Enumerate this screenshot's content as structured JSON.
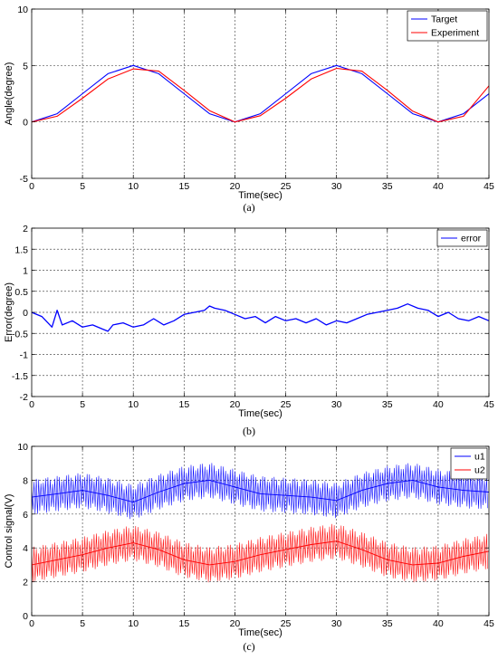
{
  "charts": [
    {
      "key": "a",
      "caption": "(a)",
      "title": "",
      "xlabel": "Time(sec)",
      "ylabel": "Angle(degree)",
      "xlim": [
        0,
        45
      ],
      "ylim": [
        -5,
        10
      ],
      "xticks": [
        0,
        5,
        10,
        15,
        20,
        25,
        30,
        35,
        40,
        45
      ],
      "yticks": [
        -5,
        0,
        5,
        10
      ],
      "grid": true,
      "legend_position": "top-right",
      "legend_labels": [
        "Target",
        "Experiment"
      ]
    },
    {
      "key": "b",
      "caption": "(b)",
      "title": "",
      "xlabel": "Time(sec)",
      "ylabel": "Error(degree)",
      "xlim": [
        0,
        45
      ],
      "ylim": [
        -2,
        2
      ],
      "xticks": [
        0,
        5,
        10,
        15,
        20,
        25,
        30,
        35,
        40,
        45
      ],
      "yticks": [
        -2,
        -1.5,
        -1,
        -0.5,
        0,
        0.5,
        1,
        1.5,
        2
      ],
      "grid": true,
      "legend_position": "top-right",
      "legend_labels": [
        "error"
      ]
    },
    {
      "key": "c",
      "caption": "(c)",
      "title": "",
      "xlabel": "Time(sec)",
      "ylabel": "Control signal(V)",
      "xlim": [
        0,
        45
      ],
      "ylim": [
        0,
        10
      ],
      "xticks": [
        0,
        5,
        10,
        15,
        20,
        25,
        30,
        35,
        40,
        45
      ],
      "yticks": [
        0,
        2,
        4,
        6,
        8,
        10
      ],
      "grid": true,
      "legend_position": "top-right",
      "legend_labels": [
        "u1",
        "u2"
      ]
    }
  ],
  "chart_data": [
    {
      "type": "line",
      "title": "",
      "xlabel": "Time(sec)",
      "ylabel": "Angle(degree)",
      "xlim": [
        0,
        45
      ],
      "ylim": [
        -5,
        10
      ],
      "grid": true,
      "legend": "top-right",
      "x": [
        0,
        2.5,
        5,
        7.5,
        10,
        12.5,
        15,
        17.5,
        20,
        22.5,
        25,
        27.5,
        30,
        32.5,
        35,
        37.5,
        40,
        42.5,
        45
      ],
      "series": [
        {
          "name": "Target",
          "color": "#0000ff",
          "values": [
            0,
            0.73,
            2.5,
            4.27,
            5,
            4.27,
            2.5,
            0.73,
            0,
            0.73,
            2.5,
            4.27,
            5,
            4.27,
            2.5,
            0.73,
            0,
            0.73,
            2.5
          ]
        },
        {
          "name": "Experiment",
          "color": "#ff0000",
          "values": [
            0,
            0.5,
            2.1,
            3.8,
            4.7,
            4.5,
            2.8,
            1.0,
            0,
            0.55,
            2.1,
            3.8,
            4.75,
            4.5,
            2.8,
            0.95,
            0,
            0.5,
            3.2
          ]
        }
      ]
    },
    {
      "type": "line",
      "title": "",
      "xlabel": "Time(sec)",
      "ylabel": "Error(degree)",
      "xlim": [
        0,
        45
      ],
      "ylim": [
        -2,
        2
      ],
      "grid": true,
      "legend": "top-right",
      "x": [
        0,
        1,
        2,
        2.5,
        3,
        4,
        5,
        6,
        7,
        7.5,
        8,
        9,
        10,
        11,
        12,
        13,
        14,
        15,
        16,
        17,
        17.5,
        18,
        19,
        20,
        21,
        22,
        23,
        24,
        25,
        26,
        27,
        28,
        29,
        30,
        31,
        32,
        33,
        34,
        35,
        36,
        37,
        38,
        39,
        40,
        41,
        42,
        43,
        44,
        45
      ],
      "series": [
        {
          "name": "error",
          "color": "#0000ff",
          "values": [
            0,
            -0.1,
            -0.35,
            0.05,
            -0.3,
            -0.2,
            -0.35,
            -0.3,
            -0.4,
            -0.45,
            -0.3,
            -0.25,
            -0.35,
            -0.3,
            -0.15,
            -0.3,
            -0.2,
            -0.05,
            0,
            0.05,
            0.15,
            0.1,
            0.05,
            -0.05,
            -0.15,
            -0.1,
            -0.25,
            -0.1,
            -0.2,
            -0.15,
            -0.25,
            -0.15,
            -0.3,
            -0.2,
            -0.25,
            -0.15,
            -0.05,
            0,
            0.05,
            0.1,
            0.2,
            0.1,
            0.05,
            -0.1,
            0,
            -0.15,
            -0.2,
            -0.1,
            -0.2
          ]
        }
      ]
    },
    {
      "type": "line",
      "title": "",
      "xlabel": "Time(sec)",
      "ylabel": "Control signal(V)",
      "xlim": [
        0,
        45
      ],
      "ylim": [
        0,
        10
      ],
      "grid": true,
      "legend": "top-right",
      "x": [
        0,
        2.5,
        5,
        7.5,
        10,
        12.5,
        15,
        17.5,
        20,
        22.5,
        25,
        27.5,
        30,
        32.5,
        35,
        37.5,
        40,
        42.5,
        45
      ],
      "series": [
        {
          "name": "u1",
          "color": "#0000ff",
          "values": [
            7.0,
            7.2,
            7.4,
            7.1,
            6.7,
            7.3,
            7.8,
            8.0,
            7.6,
            7.2,
            7.1,
            7.0,
            6.8,
            7.4,
            7.8,
            8.0,
            7.6,
            7.4,
            7.3
          ]
        },
        {
          "name": "u2",
          "color": "#ff0000",
          "values": [
            3.0,
            3.3,
            3.6,
            4.0,
            4.3,
            3.9,
            3.3,
            3.0,
            3.2,
            3.6,
            3.9,
            4.2,
            4.4,
            3.9,
            3.3,
            3.0,
            3.1,
            3.5,
            3.8
          ]
        }
      ]
    }
  ]
}
